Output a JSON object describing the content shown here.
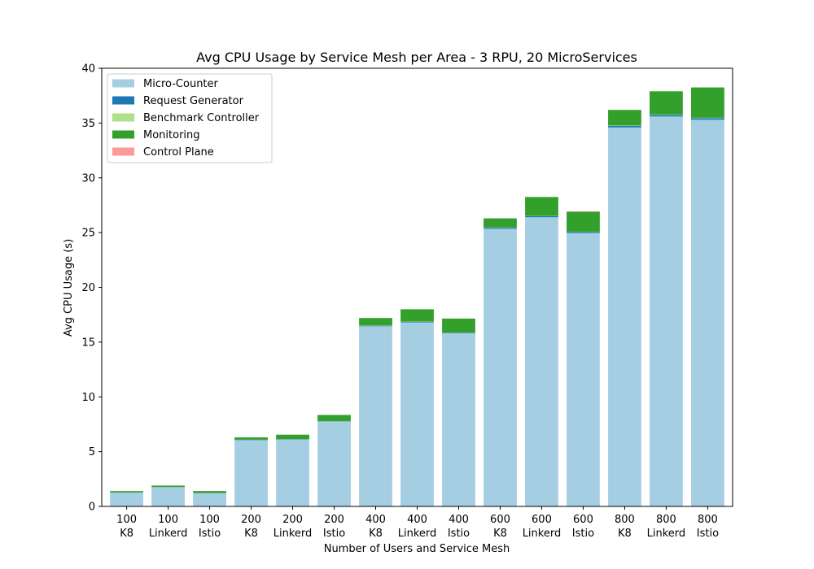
{
  "chart_data": {
    "type": "bar",
    "stacked": true,
    "title": "Avg CPU Usage by Service Mesh per Area - 3 RPU, 20 MicroServices",
    "xlabel": "Number of Users and Service Mesh",
    "ylabel": "Avg CPU Usage (s)",
    "ylim": [
      0,
      40
    ],
    "yticks": [
      0,
      5,
      10,
      15,
      20,
      25,
      30,
      35,
      40
    ],
    "grid": false,
    "legend_position": "top-left",
    "categories": [
      [
        "100",
        "K8"
      ],
      [
        "100",
        "Linkerd"
      ],
      [
        "100",
        "Istio"
      ],
      [
        "200",
        "K8"
      ],
      [
        "200",
        "Linkerd"
      ],
      [
        "200",
        "Istio"
      ],
      [
        "400",
        "K8"
      ],
      [
        "400",
        "Linkerd"
      ],
      [
        "400",
        "Istio"
      ],
      [
        "600",
        "K8"
      ],
      [
        "600",
        "Linkerd"
      ],
      [
        "600",
        "Istio"
      ],
      [
        "800",
        "K8"
      ],
      [
        "800",
        "Linkerd"
      ],
      [
        "800",
        "Istio"
      ]
    ],
    "series": [
      {
        "name": "Micro-Counter",
        "color": "#a6cee3",
        "values": [
          1.25,
          1.75,
          1.2,
          6.05,
          6.1,
          7.75,
          16.45,
          16.8,
          15.8,
          25.35,
          26.4,
          24.95,
          34.6,
          35.6,
          35.3
        ]
      },
      {
        "name": "Request Generator",
        "color": "#1f78b4",
        "values": [
          0.02,
          0.02,
          0.02,
          0.03,
          0.03,
          0.03,
          0.05,
          0.05,
          0.05,
          0.1,
          0.1,
          0.1,
          0.15,
          0.15,
          0.15
        ]
      },
      {
        "name": "Benchmark Controller",
        "color": "#b2df8a",
        "values": [
          0.01,
          0.01,
          0.01,
          0.01,
          0.01,
          0.01,
          0.02,
          0.02,
          0.02,
          0.02,
          0.02,
          0.02,
          0.03,
          0.03,
          0.03
        ]
      },
      {
        "name": "Monitoring",
        "color": "#33a02c",
        "values": [
          0.12,
          0.12,
          0.17,
          0.21,
          0.41,
          0.56,
          0.68,
          1.13,
          1.28,
          0.83,
          1.73,
          1.83,
          1.42,
          2.12,
          2.77
        ]
      },
      {
        "name": "Control Plane",
        "color": "#fb9a99",
        "values": [
          0,
          0,
          0,
          0,
          0,
          0,
          0,
          0,
          0,
          0,
          0,
          0.03,
          0,
          0,
          0
        ]
      }
    ]
  }
}
